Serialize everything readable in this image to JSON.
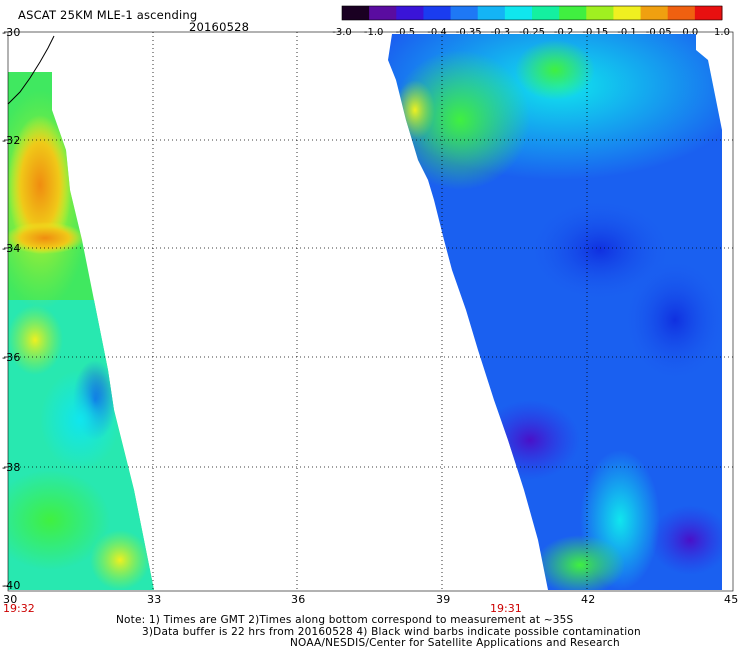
{
  "title": "ASCAT 25KM MLE-1 ascending",
  "date": "20160528",
  "colorbar": {
    "tick_labels": [
      "-3.0",
      "-1.0",
      "-0.5",
      "-0.4",
      "-0.35",
      "-0.3",
      "-0.25",
      "-0.2",
      "-0.15",
      "-0.1",
      "-0.05",
      "0.0",
      "1.0"
    ],
    "colors": [
      "#1a0022",
      "#5a0ca0",
      "#3a14d8",
      "#1a3cf0",
      "#1e78f5",
      "#14b4f5",
      "#10e6ee",
      "#14f0a0",
      "#40f040",
      "#a0f020",
      "#f0f020",
      "#f0a010",
      "#f06010",
      "#e81010"
    ]
  },
  "axes": {
    "y_ticks": [
      "-30",
      "-32",
      "-34",
      "-36",
      "-38",
      "-40"
    ],
    "x_ticks": [
      "30",
      "33",
      "36",
      "39",
      "42",
      "45"
    ]
  },
  "times": {
    "left": "19:32",
    "mid": "19:31"
  },
  "notes": {
    "line1": "Note: 1) Times are GMT 2)Times along bottom correspond to measurement at ~35S",
    "line2": "3)Data buffer is 22 hrs from 20160528 4) Black wind barbs indicate possible contamination",
    "line3": "NOAA/NESDIS/Center for Satellite Applications and Research"
  }
}
